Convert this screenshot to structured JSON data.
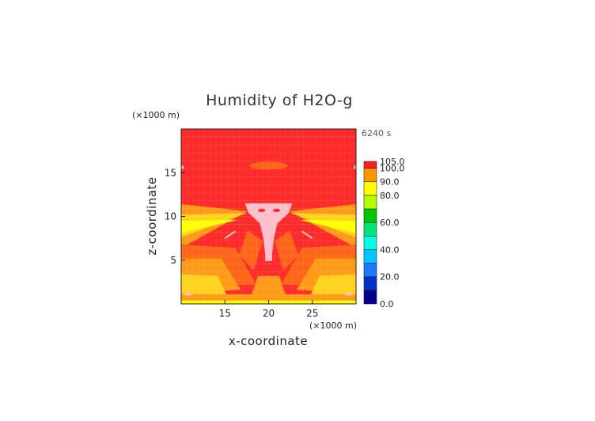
{
  "chart_data": {
    "type": "heatmap",
    "title": "Humidity of H2O-g",
    "xlabel": "x-coordinate",
    "ylabel": "z-coordinate",
    "x_unit": "(×1000 m)",
    "y_unit": "(×1000 m)",
    "time_label": "6240 s",
    "xlim": [
      10,
      30
    ],
    "ylim": [
      0,
      20
    ],
    "x_ticks": [
      15,
      20,
      25
    ],
    "y_ticks": [
      5,
      10,
      15
    ],
    "colorbar": {
      "levels": [
        0,
        10,
        20,
        30,
        40,
        50,
        60,
        70,
        80,
        90,
        100,
        105
      ],
      "colors": [
        "#00008b",
        "#0030c8",
        "#1e78ff",
        "#00c8ff",
        "#00ffe6",
        "#00e676",
        "#00c800",
        "#b4ff00",
        "#ffff00",
        "#ff9600",
        "#ff1e1e",
        "#ffffff"
      ],
      "tick_values": [
        0,
        20,
        40,
        60,
        80,
        90,
        100,
        105
      ],
      "tick_labels": [
        "0.0",
        "20.0",
        "40.0",
        "60.0",
        "80.0",
        "90.0",
        "100.0",
        "105.0"
      ]
    },
    "colors": {
      "supersaturated": "#ffc0cb",
      "saturated": "#ff2a2a",
      "level_95": "#ff6418",
      "level_85": "#ff9a18",
      "level_75": "#ffd21e",
      "level_70": "#ffff00"
    }
  }
}
